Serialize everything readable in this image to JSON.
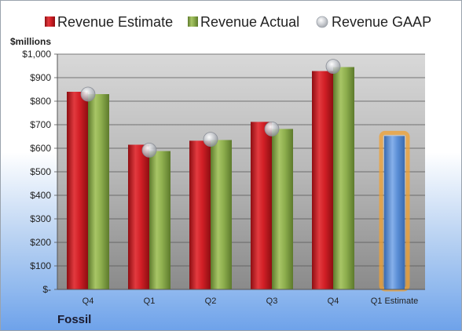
{
  "footer_label": "Fossil",
  "chart_data": {
    "type": "bar",
    "unit_label": "$millions",
    "categories": [
      "Q4",
      "Q1",
      "Q2",
      "Q3",
      "Q4",
      "Q1 Estimate"
    ],
    "ylim": [
      0,
      1000
    ],
    "yticks": [
      0,
      100,
      200,
      300,
      400,
      500,
      600,
      700,
      800,
      900,
      1000
    ],
    "ytick_labels": [
      "$-",
      "$100",
      "$200",
      "$300",
      "$400",
      "$500",
      "$600",
      "$700",
      "$800",
      "$900",
      "$1,000"
    ],
    "grid": true,
    "legend_position": "top",
    "series": [
      {
        "name": "Revenue Estimate",
        "kind": "bar",
        "color": "#d21f26",
        "values": [
          840,
          615,
          632,
          712,
          928,
          null
        ]
      },
      {
        "name": "Revenue Actual",
        "kind": "bar",
        "color": "#8fb04f",
        "values": [
          830,
          588,
          635,
          682,
          945,
          null
        ]
      },
      {
        "name": "Revenue GAAP",
        "kind": "marker",
        "color": "#b9bcc2",
        "values": [
          830,
          592,
          638,
          682,
          948,
          null
        ]
      },
      {
        "name": "Q1 Estimate",
        "kind": "bar",
        "color": "#5b8fd6",
        "highlight": "#f0a030",
        "values": [
          null,
          null,
          null,
          null,
          null,
          652
        ]
      }
    ]
  }
}
